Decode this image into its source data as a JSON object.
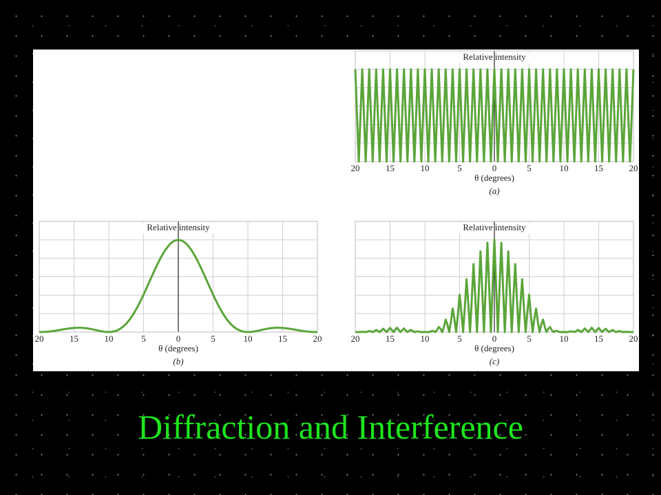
{
  "title": "Diffraction and Interference",
  "chart_data": [
    {
      "type": "line",
      "ylabel": "Relative intensity",
      "xlabel": "θ (degrees)",
      "caption": "(a)",
      "color": "#5ba53a",
      "grid": true,
      "xlim": [
        -20,
        20
      ],
      "ylim": [
        0,
        1.2
      ],
      "yticks": [
        0,
        0.2,
        0.4,
        0.6,
        0.8,
        1,
        1.2
      ],
      "xticks": [
        {
          "value": -20,
          "label": "20"
        },
        {
          "value": -15,
          "label": "15"
        },
        {
          "value": -10,
          "label": "10"
        },
        {
          "value": -5,
          "label": "5"
        },
        0,
        5,
        10,
        15,
        20
      ],
      "x": [
        -20,
        -19.75,
        -19.5,
        -19.25,
        -19,
        -18.75,
        -18.5,
        -18.25,
        -18,
        -17.75,
        -17.5,
        -17.25,
        -17,
        -16.75,
        -16.5,
        -16.25,
        -16,
        -15.75,
        -15.5,
        -15.25,
        -15,
        -14.75,
        -14.5,
        -14.25,
        -14,
        -13.75,
        -13.5,
        -13.25,
        -13,
        -12.75,
        -12.5,
        -12.25,
        -12,
        -11.75,
        -11.5,
        -11.25,
        -11,
        -10.75,
        -10.5,
        -10.25,
        -10,
        -9.75,
        -9.5,
        -9.25,
        -9,
        -8.75,
        -8.5,
        -8.25,
        -8,
        -7.75,
        -7.5,
        -7.25,
        -7,
        -6.75,
        -6.5,
        -6.25,
        -6,
        -5.75,
        -5.5,
        -5.25,
        -5,
        -4.75,
        -4.5,
        -4.25,
        -4,
        -3.75,
        -3.5,
        -3.25,
        -3,
        -2.75,
        -2.5,
        -2.25,
        -2,
        -1.75,
        -1.5,
        -1.25,
        -1,
        -0.75,
        -0.5,
        -0.25,
        0,
        0.25,
        0.5,
        0.75,
        1,
        1.25,
        1.5,
        1.75,
        2,
        2.25,
        2.5,
        2.75,
        3,
        3.25,
        3.5,
        3.75,
        4,
        4.25,
        4.5,
        4.75,
        5,
        5.25,
        5.5,
        5.75,
        6,
        6.25,
        6.5,
        6.75,
        7,
        7.25,
        7.5,
        7.75,
        8,
        8.25,
        8.5,
        8.75,
        9,
        9.25,
        9.5,
        9.75,
        10,
        10.25,
        10.5,
        10.75,
        11,
        11.25,
        11.5,
        11.75,
        12,
        12.25,
        12.5,
        12.75,
        13,
        13.25,
        13.5,
        13.75,
        14,
        14.25,
        14.5,
        14.75,
        15,
        15.25,
        15.5,
        15.75,
        16,
        16.25,
        16.5,
        16.75,
        17,
        17.25,
        17.5,
        17.75,
        18,
        18.25,
        18.5,
        18.75,
        19,
        19.25,
        19.5,
        19.75,
        20
      ],
      "values": [
        1,
        0.5,
        0,
        0.5,
        1,
        0.5,
        0,
        0.5,
        1,
        0.5,
        0,
        0.5,
        1,
        0.5,
        0,
        0.5,
        1,
        0.5,
        0,
        0.5,
        1,
        0.5,
        0,
        0.5,
        1,
        0.5,
        0,
        0.5,
        1,
        0.5,
        0,
        0.5,
        1,
        0.5,
        0,
        0.5,
        1,
        0.5,
        0,
        0.5,
        1,
        0.5,
        0,
        0.5,
        1,
        0.5,
        0,
        0.5,
        1,
        0.5,
        0,
        0.5,
        1,
        0.5,
        0,
        0.5,
        1,
        0.5,
        0,
        0.5,
        1,
        0.5,
        0,
        0.5,
        1,
        0.5,
        0,
        0.5,
        1,
        0.5,
        0,
        0.5,
        1,
        0.5,
        0,
        0.5,
        1,
        0.5,
        0,
        0.5,
        1,
        0.5,
        0,
        0.5,
        1,
        0.5,
        0,
        0.5,
        1,
        0.5,
        0,
        0.5,
        1,
        0.5,
        0,
        0.5,
        1,
        0.5,
        0,
        0.5,
        1,
        0.5,
        0,
        0.5,
        1,
        0.5,
        0,
        0.5,
        1,
        0.5,
        0,
        0.5,
        1,
        0.5,
        0,
        0.5,
        1,
        0.5,
        0,
        0.5,
        1,
        0.5,
        0,
        0.5,
        1,
        0.5,
        0,
        0.5,
        1,
        0.5,
        0,
        0.5,
        1,
        0.5,
        0,
        0.5,
        1,
        0.5,
        0,
        0.5,
        1,
        0.5,
        0,
        0.5,
        1,
        0.5,
        0,
        0.5,
        1,
        0.5,
        0,
        0.5,
        1,
        0.5,
        0,
        0.5,
        1,
        0.5,
        0,
        0.5,
        1
      ]
    },
    {
      "type": "line",
      "ylabel": "Relative intensity",
      "xlabel": "θ (degrees)",
      "caption": "(b)",
      "color": "#5ba53a",
      "grid": true,
      "xlim": [
        -20,
        20
      ],
      "ylim": [
        0,
        1.2
      ],
      "yticks": [
        0,
        0.2,
        0.4,
        0.6,
        0.8,
        1,
        1.2
      ],
      "xticks": [
        {
          "value": -20,
          "label": "20"
        },
        {
          "value": -15,
          "label": "15"
        },
        {
          "value": -10,
          "label": "10"
        },
        {
          "value": -5,
          "label": "5"
        },
        0,
        5,
        10,
        15,
        20
      ],
      "x": [
        -20,
        -19.5,
        -19,
        -18.5,
        -18,
        -17.5,
        -17,
        -16.5,
        -16,
        -15.5,
        -15,
        -14.5,
        -14,
        -13.5,
        -13,
        -12.5,
        -12,
        -11.5,
        -11,
        -10.5,
        -10,
        -9.5,
        -9,
        -8.5,
        -8,
        -7.5,
        -7,
        -6.5,
        -6,
        -5.5,
        -5,
        -4.5,
        -4,
        -3.5,
        -3,
        -2.5,
        -2,
        -1.5,
        -1,
        -0.5,
        0,
        0.5,
        1,
        1.5,
        2,
        2.5,
        3,
        3.5,
        4,
        4.5,
        5,
        5.5,
        6,
        6.5,
        7,
        7.5,
        8,
        8.5,
        9,
        9.5,
        10,
        10.5,
        11,
        11.5,
        12,
        12.5,
        13,
        13.5,
        14,
        14.5,
        15,
        15.5,
        16,
        16.5,
        17,
        17.5,
        18,
        18.5,
        19,
        19.5,
        20
      ],
      "values": [
        0,
        0.001,
        0.003,
        0.006,
        0.011,
        0.017,
        0.023,
        0.03,
        0.036,
        0.041,
        0.045,
        0.047,
        0.047,
        0.044,
        0.039,
        0.032,
        0.024,
        0.016,
        0.008,
        0.002,
        0,
        0.003,
        0.012,
        0.029,
        0.055,
        0.09,
        0.135,
        0.19,
        0.255,
        0.327,
        0.405,
        0.488,
        0.573,
        0.657,
        0.737,
        0.811,
        0.875,
        0.928,
        0.968,
        0.992,
        1,
        0.992,
        0.968,
        0.928,
        0.875,
        0.811,
        0.737,
        0.657,
        0.573,
        0.488,
        0.405,
        0.327,
        0.255,
        0.19,
        0.135,
        0.09,
        0.055,
        0.029,
        0.012,
        0.003,
        0,
        0.002,
        0.008,
        0.016,
        0.024,
        0.032,
        0.039,
        0.044,
        0.047,
        0.047,
        0.045,
        0.041,
        0.036,
        0.03,
        0.023,
        0.017,
        0.011,
        0.006,
        0.003,
        0.001,
        0
      ]
    },
    {
      "type": "line",
      "ylabel": "Relative intensity",
      "xlabel": "θ (degrees)",
      "caption": "(c)",
      "color": "#5ba53a",
      "grid": true,
      "xlim": [
        -20,
        20
      ],
      "ylim": [
        0,
        1.2
      ],
      "yticks": [
        0,
        0.2,
        0.4,
        0.6,
        0.8,
        1,
        1.2
      ],
      "xticks": [
        {
          "value": -20,
          "label": "20"
        },
        {
          "value": -15,
          "label": "15"
        },
        {
          "value": -10,
          "label": "10"
        },
        {
          "value": -5,
          "label": "5"
        },
        0,
        5,
        10,
        15,
        20
      ],
      "x": [
        -20,
        -19.75,
        -19.5,
        -19.25,
        -19,
        -18.75,
        -18.5,
        -18.25,
        -18,
        -17.75,
        -17.5,
        -17.25,
        -17,
        -16.75,
        -16.5,
        -16.25,
        -16,
        -15.75,
        -15.5,
        -15.25,
        -15,
        -14.75,
        -14.5,
        -14.25,
        -14,
        -13.75,
        -13.5,
        -13.25,
        -13,
        -12.75,
        -12.5,
        -12.25,
        -12,
        -11.75,
        -11.5,
        -11.25,
        -11,
        -10.75,
        -10.5,
        -10.25,
        -10,
        -9.75,
        -9.5,
        -9.25,
        -9,
        -8.75,
        -8.5,
        -8.25,
        -8,
        -7.75,
        -7.5,
        -7.25,
        -7,
        -6.75,
        -6.5,
        -6.25,
        -6,
        -5.75,
        -5.5,
        -5.25,
        -5,
        -4.75,
        -4.5,
        -4.25,
        -4,
        -3.75,
        -3.5,
        -3.25,
        -3,
        -2.75,
        -2.5,
        -2.25,
        -2,
        -1.75,
        -1.5,
        -1.25,
        -1,
        -0.75,
        -0.5,
        -0.25,
        0,
        0.25,
        0.5,
        0.75,
        1,
        1.25,
        1.5,
        1.75,
        2,
        2.25,
        2.5,
        2.75,
        3,
        3.25,
        3.5,
        3.75,
        4,
        4.25,
        4.5,
        4.75,
        5,
        5.25,
        5.5,
        5.75,
        6,
        6.25,
        6.5,
        6.75,
        7,
        7.25,
        7.5,
        7.75,
        8,
        8.25,
        8.5,
        8.75,
        9,
        9.25,
        9.5,
        9.75,
        10,
        10.25,
        10.5,
        10.75,
        11,
        11.25,
        11.5,
        11.75,
        12,
        12.25,
        12.5,
        12.75,
        13,
        13.25,
        13.5,
        13.75,
        14,
        14.25,
        14.5,
        14.75,
        15,
        15.25,
        15.5,
        15.75,
        16,
        16.25,
        16.5,
        16.75,
        17,
        17.25,
        17.5,
        17.75,
        18,
        18.25,
        18.5,
        18.75,
        19,
        19.25,
        19.5,
        19.75,
        20
      ],
      "values": [
        0,
        0,
        0,
        0.001,
        0.003,
        0.002,
        0,
        0.004,
        0.011,
        0.007,
        0,
        0.01,
        0.023,
        0.013,
        0,
        0.017,
        0.036,
        0.02,
        0,
        0.022,
        0.045,
        0.023,
        0,
        0.024,
        0.047,
        0.023,
        0,
        0.021,
        0.039,
        0.018,
        0,
        0.014,
        0.024,
        0.01,
        0,
        0.006,
        0.008,
        0.003,
        0,
        0.001,
        0,
        0.001,
        0,
        0.003,
        0.012,
        0.01,
        0,
        0.021,
        0.055,
        0.036,
        0,
        0.056,
        0.135,
        0.081,
        0,
        0.111,
        0.255,
        0.145,
        0,
        0.183,
        0.405,
        0.223,
        0,
        0.265,
        0.573,
        0.308,
        0,
        0.349,
        0.737,
        0.388,
        0,
        0.422,
        0.875,
        0.452,
        0,
        0.475,
        0.968,
        0.491,
        0,
        0.499,
        1,
        0.499,
        0,
        0.491,
        0.968,
        0.475,
        0,
        0.452,
        0.875,
        0.422,
        0,
        0.388,
        0.737,
        0.349,
        0,
        0.308,
        0.573,
        0.265,
        0,
        0.223,
        0.405,
        0.183,
        0,
        0.145,
        0.255,
        0.111,
        0,
        0.081,
        0.135,
        0.056,
        0,
        0.036,
        0.055,
        0.021,
        0,
        0.01,
        0.012,
        0.003,
        0,
        0.001,
        0,
        0.001,
        0,
        0.003,
        0.008,
        0.006,
        0,
        0.01,
        0.024,
        0.014,
        0,
        0.018,
        0.039,
        0.021,
        0,
        0.023,
        0.047,
        0.024,
        0,
        0.023,
        0.045,
        0.022,
        0,
        0.02,
        0.036,
        0.017,
        0,
        0.013,
        0.023,
        0.01,
        0,
        0.007,
        0.011,
        0.004,
        0,
        0.002,
        0.003,
        0.001,
        0,
        0,
        0
      ]
    }
  ]
}
